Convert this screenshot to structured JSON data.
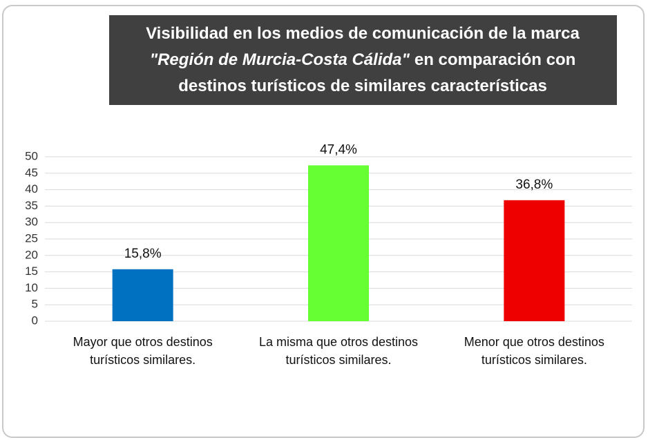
{
  "chart_data": {
    "type": "bar",
    "title": [
      [
        {
          "text": "Visibilidad en los medios de comunicación de la marca",
          "italic": false
        }
      ],
      [
        {
          "text": "\"Región de Murcia-Costa Cálida\"",
          "italic": true
        },
        {
          "text": "en comparación con",
          "italic": false
        }
      ],
      [
        {
          "text": "destinos turísticos de similares características",
          "italic": false
        }
      ]
    ],
    "categories": [
      [
        "Mayor que otros destinos",
        "turísticos similares."
      ],
      [
        "La misma que otros destinos",
        "turísticos similares."
      ],
      [
        "Menor que otros destinos",
        "turísticos similares."
      ]
    ],
    "values": [
      15.8,
      47.4,
      36.8
    ],
    "value_labels": [
      "15,8%",
      "47,4%",
      "36,8%"
    ],
    "colors": [
      "#0070c0",
      "#66ff33",
      "#ee0000"
    ],
    "ylim": [
      0,
      50
    ],
    "yticks": [
      0,
      5,
      10,
      15,
      20,
      25,
      30,
      35,
      40,
      45,
      50
    ],
    "grid": true
  }
}
